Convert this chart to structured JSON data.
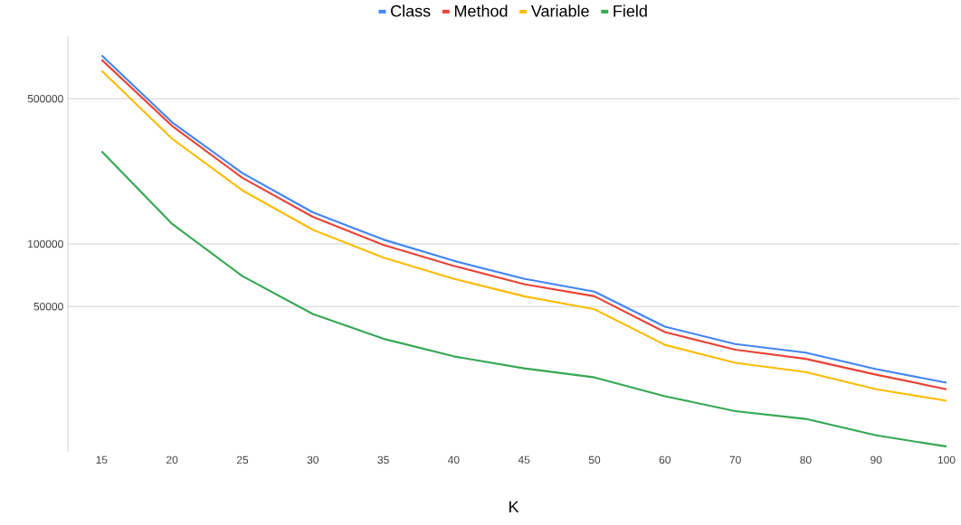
{
  "chart_data": {
    "type": "line",
    "xlabel": "K",
    "categories": [
      "15",
      "20",
      "25",
      "30",
      "35",
      "40",
      "45",
      "50",
      "60",
      "70",
      "80",
      "90",
      "100"
    ],
    "series": [
      {
        "name": "Class",
        "color": "#4285f4",
        "values": [
          809000,
          385000,
          219000,
          142000,
          105000,
          83000,
          68000,
          59000,
          40000,
          33000,
          30000,
          25000,
          21500
        ]
      },
      {
        "name": "Method",
        "color": "#ea4335",
        "values": [
          770000,
          370000,
          208000,
          135000,
          99000,
          78500,
          64000,
          56000,
          37700,
          31000,
          28000,
          23500,
          20000
        ]
      },
      {
        "name": "Variable",
        "color": "#fbbc04",
        "values": [
          682000,
          321000,
          181000,
          117000,
          86000,
          68000,
          56000,
          48500,
          32700,
          26800,
          24200,
          20000,
          17600
        ]
      },
      {
        "name": "Field",
        "color": "#34a853",
        "values": [
          279000,
          125000,
          70000,
          46000,
          35000,
          28800,
          25200,
          22800,
          18500,
          15700,
          14400,
          12000,
          10600
        ]
      }
    ],
    "log": "y",
    "ylim": [
      10000,
      1000000
    ],
    "yticks": [
      50000,
      100000,
      500000
    ],
    "grid": "y",
    "legend": "top",
    "marker": "none",
    "line_style": "solid"
  }
}
